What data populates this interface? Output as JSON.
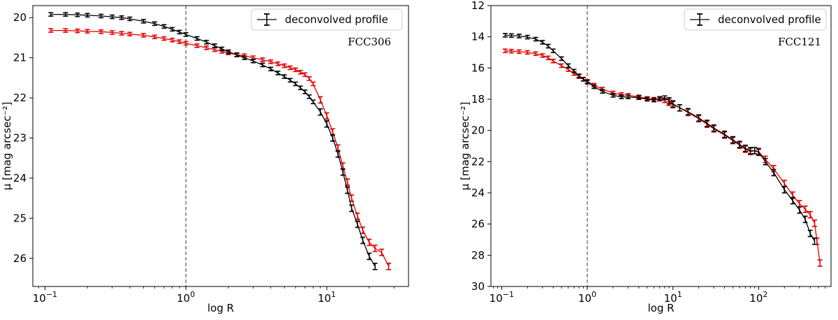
{
  "chart_data": [
    {
      "type": "line",
      "title": "",
      "xlabel": "log R",
      "ylabel": "μ [mag arcsec⁻²]",
      "xscale": "log",
      "xlim": [
        0.082,
        38
      ],
      "ylim": [
        26.7,
        19.7
      ],
      "yaxis_inverted": true,
      "xticks": [
        {
          "value": 0.1,
          "base": "10",
          "exp": "−1"
        },
        {
          "value": 1,
          "base": "10",
          "exp": "0"
        },
        {
          "value": 10,
          "base": "10",
          "exp": "1"
        }
      ],
      "yticks": [
        20,
        21,
        22,
        23,
        24,
        25,
        26
      ],
      "vline": 1,
      "annotation": "FCC306",
      "legend": {
        "label": "deconvolved profile",
        "position": "top-right"
      },
      "series": [
        {
          "name": "black",
          "color": "#000000",
          "x": [
            0.11,
            0.14,
            0.17,
            0.2,
            0.25,
            0.3,
            0.35,
            0.4,
            0.5,
            0.6,
            0.7,
            0.8,
            0.9,
            1.0,
            1.2,
            1.4,
            1.6,
            1.8,
            2.0,
            2.3,
            2.6,
            3.0,
            3.5,
            4.0,
            4.5,
            5.0,
            5.5,
            6.0,
            6.5,
            7.0,
            7.5,
            8.0,
            9.0,
            10.0,
            11.0,
            12.0,
            13.0,
            14.0,
            15.0,
            16.5,
            18.0,
            20.0,
            22.0
          ],
          "y": [
            19.92,
            19.92,
            19.93,
            19.94,
            19.96,
            19.98,
            20.0,
            20.03,
            20.09,
            20.15,
            20.22,
            20.29,
            20.36,
            20.42,
            20.52,
            20.61,
            20.7,
            20.78,
            20.85,
            20.93,
            21.0,
            21.08,
            21.18,
            21.28,
            21.38,
            21.47,
            21.56,
            21.65,
            21.75,
            21.85,
            21.97,
            22.1,
            22.35,
            22.65,
            23.0,
            23.4,
            23.85,
            24.3,
            24.75,
            25.15,
            25.55,
            25.95,
            26.2
          ]
        },
        {
          "name": "red",
          "color": "#e00000",
          "x": [
            0.11,
            0.14,
            0.17,
            0.2,
            0.25,
            0.3,
            0.35,
            0.4,
            0.5,
            0.6,
            0.7,
            0.8,
            0.9,
            1.0,
            1.2,
            1.4,
            1.6,
            1.8,
            2.0,
            2.3,
            2.6,
            3.0,
            3.5,
            4.0,
            4.5,
            5.0,
            5.5,
            6.0,
            6.5,
            7.0,
            7.5,
            8.0,
            9.0,
            10.0,
            11.0,
            12.0,
            13.0,
            14.0,
            15.0,
            16.5,
            18.0,
            20.0,
            22.0,
            24.5,
            27.5
          ],
          "y": [
            20.32,
            20.32,
            20.33,
            20.34,
            20.35,
            20.37,
            20.39,
            20.41,
            20.44,
            20.48,
            20.52,
            20.56,
            20.6,
            20.64,
            20.7,
            20.75,
            20.8,
            20.84,
            20.88,
            20.92,
            20.95,
            21.0,
            21.05,
            21.1,
            21.15,
            21.2,
            21.25,
            21.3,
            21.36,
            21.42,
            21.52,
            21.65,
            22.05,
            22.45,
            22.85,
            23.25,
            23.7,
            24.1,
            24.5,
            24.95,
            25.3,
            25.6,
            25.75,
            25.85,
            26.2
          ]
        }
      ]
    },
    {
      "type": "line",
      "title": "",
      "xlabel": "log R",
      "ylabel": "μ [mag arcsec⁻²]",
      "xscale": "log",
      "xlim": [
        0.075,
        700
      ],
      "ylim": [
        30,
        12
      ],
      "yaxis_inverted": true,
      "xticks": [
        {
          "value": 0.1,
          "base": "10",
          "exp": "−1"
        },
        {
          "value": 1,
          "base": "10",
          "exp": "0"
        },
        {
          "value": 10,
          "base": "10",
          "exp": "1"
        },
        {
          "value": 100,
          "base": "10",
          "exp": "2"
        }
      ],
      "yticks": [
        12,
        14,
        16,
        18,
        20,
        22,
        24,
        26,
        28,
        30
      ],
      "vline": 1,
      "annotation": "FCC121",
      "legend": {
        "label": "deconvolved profile",
        "position": "top-right"
      },
      "series": [
        {
          "name": "black",
          "color": "#000000",
          "x": [
            0.11,
            0.13,
            0.16,
            0.2,
            0.25,
            0.3,
            0.35,
            0.4,
            0.5,
            0.6,
            0.7,
            0.8,
            0.9,
            1.0,
            1.2,
            1.5,
            2.0,
            2.5,
            3.0,
            4.0,
            5.0,
            6.0,
            7.0,
            8.0,
            9.0,
            10.0,
            12.0,
            15.0,
            20.0,
            25.0,
            30.0,
            40.0,
            50.0,
            60.0,
            70.0,
            80.0,
            90.0,
            100.0,
            120.0,
            150.0,
            200.0,
            250.0,
            300.0,
            350.0,
            400.0,
            450.0
          ],
          "y": [
            13.9,
            13.92,
            13.95,
            14.02,
            14.15,
            14.35,
            14.6,
            14.9,
            15.4,
            15.85,
            16.2,
            16.5,
            16.72,
            16.9,
            17.2,
            17.5,
            17.75,
            17.85,
            17.85,
            17.9,
            18.0,
            18.05,
            17.95,
            17.9,
            18.1,
            18.3,
            18.55,
            18.8,
            19.2,
            19.55,
            19.85,
            20.25,
            20.6,
            20.9,
            21.15,
            21.3,
            21.3,
            21.4,
            22.0,
            22.7,
            23.8,
            24.5,
            25.1,
            25.7,
            26.6,
            27.1
          ]
        },
        {
          "name": "red",
          "color": "#e00000",
          "x": [
            0.11,
            0.13,
            0.16,
            0.2,
            0.25,
            0.3,
            0.35,
            0.4,
            0.5,
            0.6,
            0.7,
            0.8,
            0.9,
            1.0,
            1.2,
            1.5,
            2.0,
            2.5,
            3.0,
            4.0,
            5.0,
            6.0,
            7.0,
            8.0,
            9.0,
            10.0,
            12.0,
            15.0,
            20.0,
            25.0,
            30.0,
            40.0,
            50.0,
            60.0,
            70.0,
            80.0,
            90.0,
            100.0,
            120.0,
            150.0,
            200.0,
            250.0,
            300.0,
            350.0,
            400.0,
            450.0,
            480.0,
            520.0
          ],
          "y": [
            14.9,
            14.92,
            14.95,
            15.0,
            15.08,
            15.2,
            15.35,
            15.55,
            15.85,
            16.1,
            16.35,
            16.55,
            16.72,
            16.85,
            17.1,
            17.35,
            17.6,
            17.7,
            17.75,
            17.85,
            17.95,
            18.0,
            18.0,
            18.1,
            18.2,
            18.35,
            18.55,
            18.85,
            19.25,
            19.6,
            19.9,
            20.3,
            20.65,
            20.95,
            21.2,
            21.35,
            21.3,
            21.35,
            21.85,
            22.45,
            23.4,
            24.15,
            24.7,
            25.05,
            25.4,
            25.95,
            27.1,
            28.5
          ]
        }
      ]
    }
  ]
}
